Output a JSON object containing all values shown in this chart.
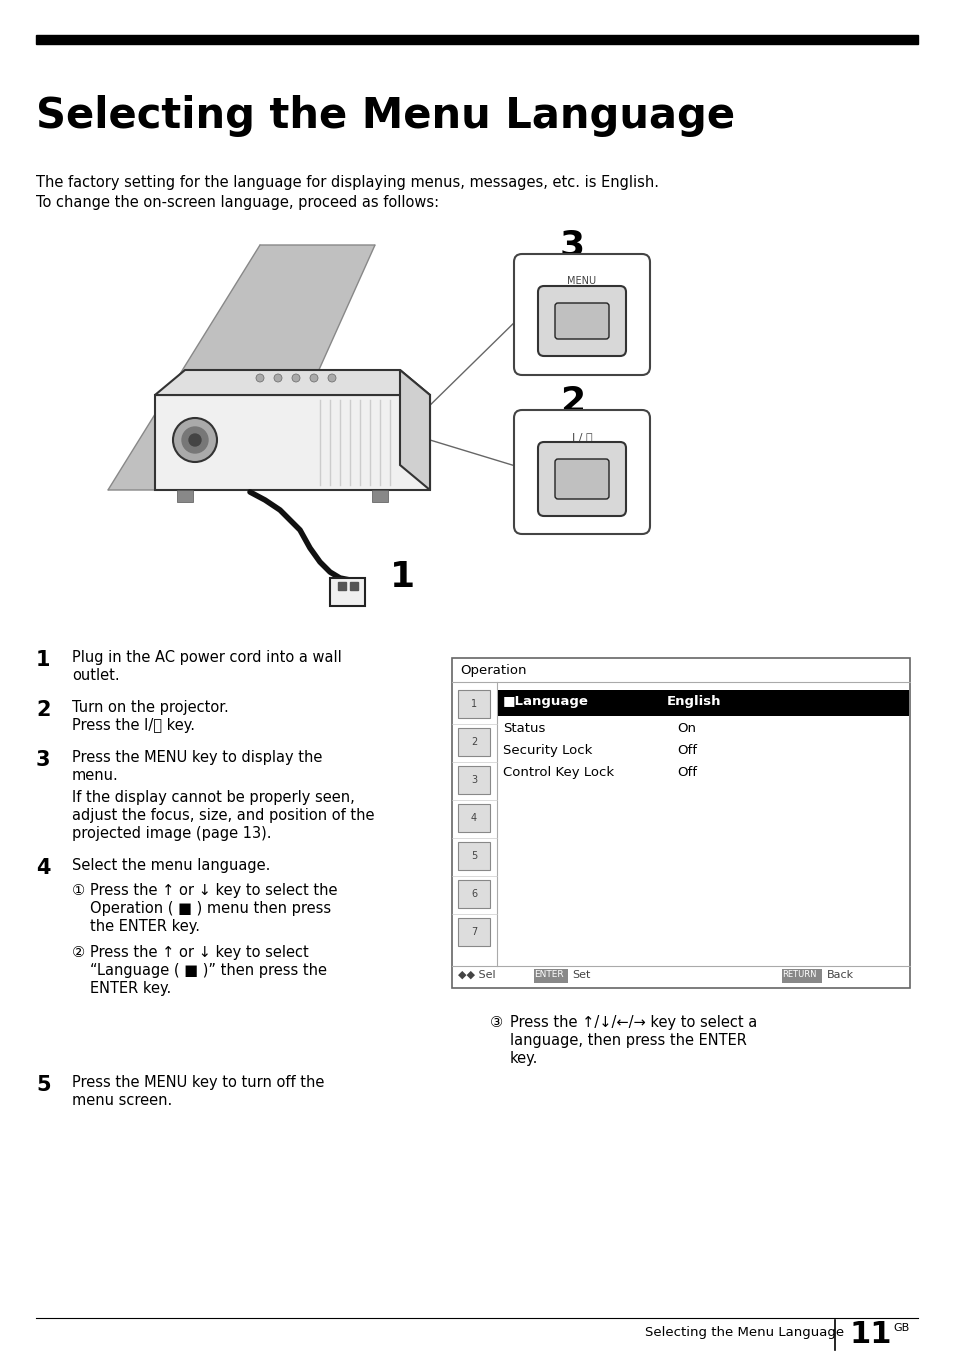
{
  "title": "Selecting the Menu Language",
  "bg_color": "#ffffff",
  "body_text_line1": "The factory setting for the language for displaying menus, messages, etc. is English.",
  "body_text_line2": "To change the on-screen language, proceed as follows:",
  "footer_text": "Selecting the Menu Language",
  "footer_page": "11",
  "footer_superscript": "GB",
  "menu_title": "Operation",
  "menu_highlight_color": "#000000",
  "menu_highlight_text_color": "#ffffff",
  "menu_bg": "#ffffff",
  "menu_border_color": "#888888",
  "menu_items": [
    [
      "Language",
      "English"
    ],
    [
      "Status",
      "On"
    ],
    [
      "Security Lock",
      "Off"
    ],
    [
      "Control Key Lock",
      "Off"
    ]
  ],
  "num_icons": 7
}
